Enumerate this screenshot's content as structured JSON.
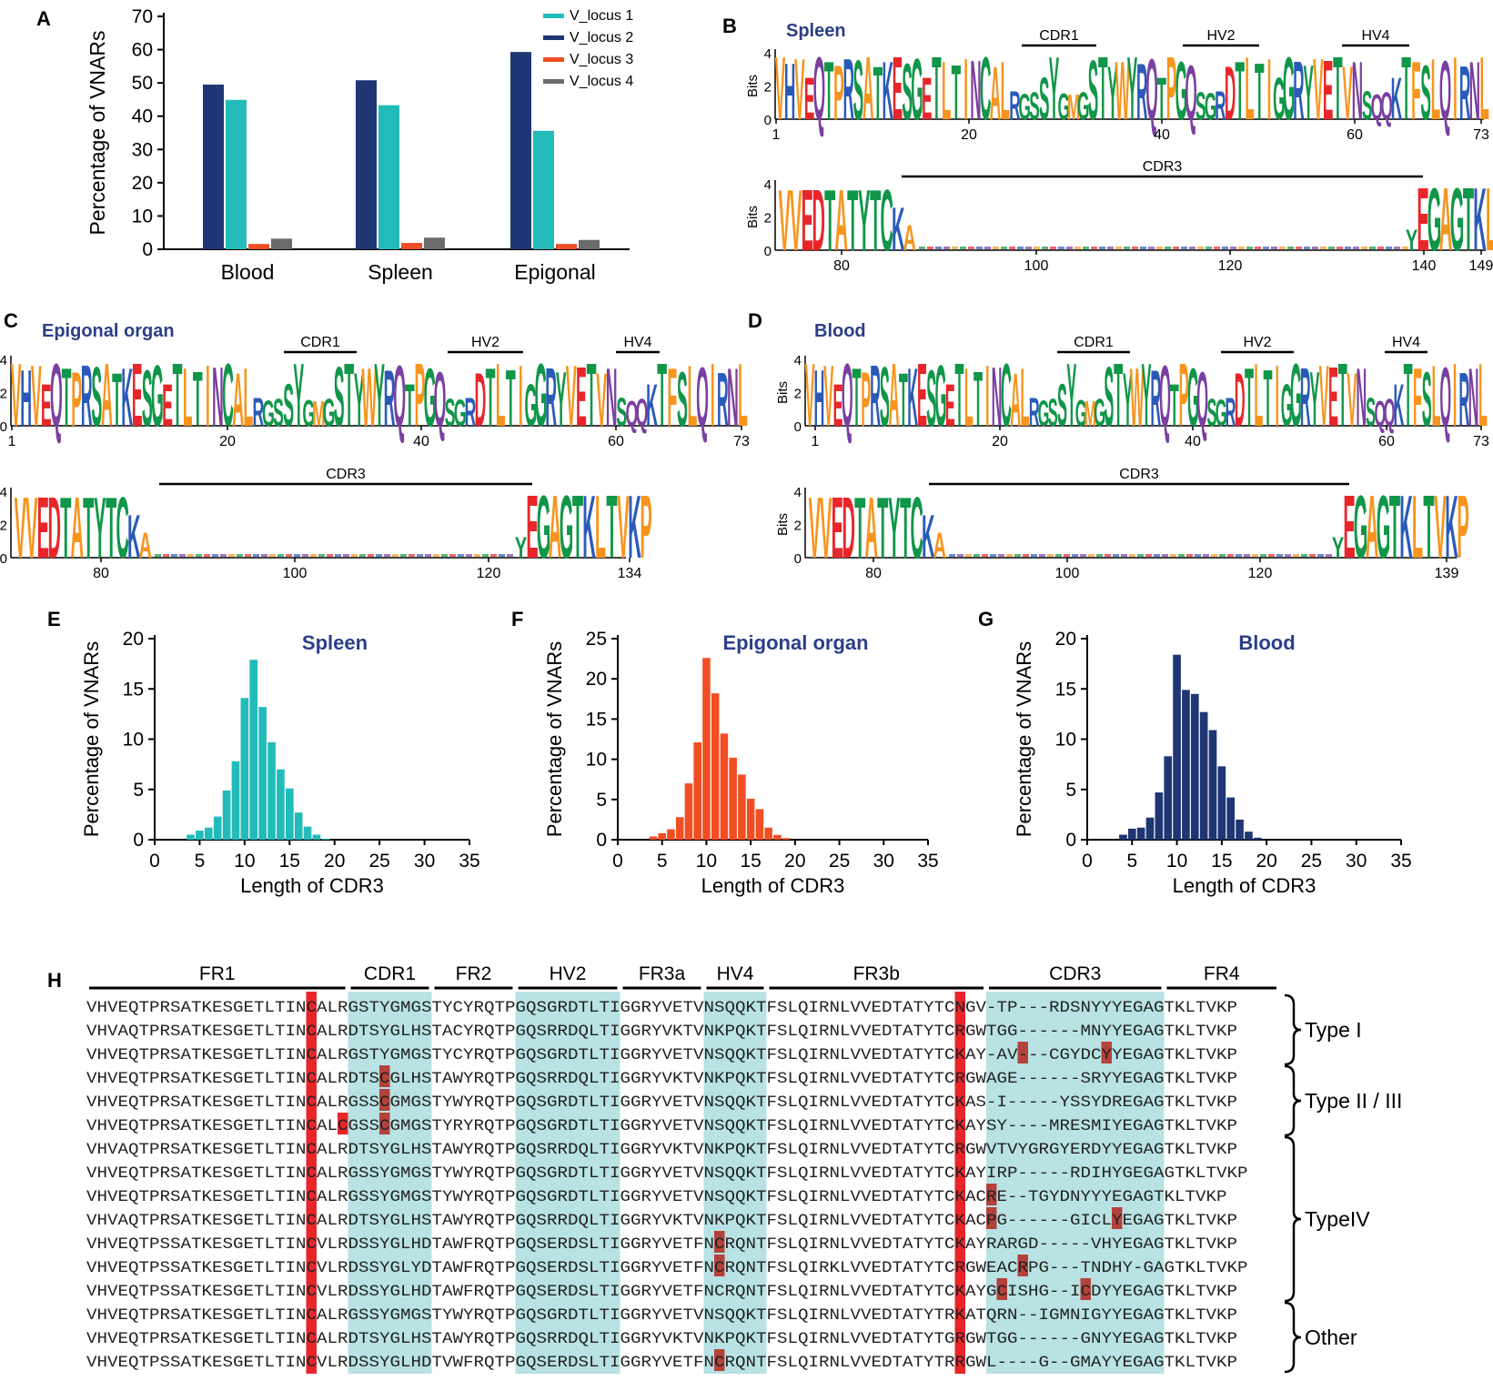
{
  "panel_labels": [
    "A",
    "B",
    "C",
    "D",
    "E",
    "F",
    "G",
    "H"
  ],
  "colors": {
    "v_locus_1": "#23bbba",
    "v_locus_2": "#1f3674",
    "v_locus_3": "#f04e23",
    "v_locus_4": "#6b6b6b",
    "title_blue": "#2b3e86",
    "cys_red": "#e8262a",
    "hv_teal": "#b8e2e3",
    "logo": [
      "#109648",
      "#2a5ab9",
      "#f7941d",
      "#e8262a",
      "#7a3fa0"
    ]
  },
  "chart_data": [
    {
      "id": "A",
      "type": "bar",
      "title": "",
      "categories": [
        "Blood",
        "Spleen",
        "Epigonal"
      ],
      "series": [
        {
          "name": "V_locus 2",
          "values": [
            49.5,
            50.8,
            59.3
          ]
        },
        {
          "name": "V_locus 1",
          "values": [
            44.9,
            43.3,
            35.6
          ]
        },
        {
          "name": "V_locus 3",
          "values": [
            1.6,
            1.9,
            1.6
          ]
        },
        {
          "name": "V_locus 4",
          "values": [
            3.2,
            3.5,
            2.8
          ]
        }
      ],
      "legend": [
        "V_locus 1",
        "V_locus 2",
        "V_locus 3",
        "V_locus 4"
      ],
      "legend_position": "top-right",
      "ylabel": "Percentage of VNARs",
      "xlabel": "",
      "ylim": [
        0,
        70
      ],
      "yticks": [
        0,
        10,
        20,
        30,
        40,
        50,
        60,
        70
      ]
    },
    {
      "id": "E",
      "type": "bar",
      "title": "Spleen",
      "color": "#23bbba",
      "x": [
        1,
        2,
        3,
        4,
        5,
        6,
        7,
        8,
        9,
        10,
        11,
        12,
        13,
        14,
        15,
        16,
        17,
        18,
        19,
        20
      ],
      "values": [
        0,
        0,
        0,
        0.5,
        0.9,
        1.2,
        2.3,
        4.9,
        7.8,
        14.1,
        17.9,
        13.2,
        9.7,
        7.0,
        5.1,
        2.7,
        1.3,
        0.5,
        0.1,
        0
      ],
      "xlabel": "Length of CDR3",
      "ylabel": "Percentage of VNARs",
      "xlim": [
        0,
        35
      ],
      "ylim": [
        0,
        20
      ],
      "xticks": [
        0,
        5,
        10,
        15,
        20,
        25,
        30,
        35
      ],
      "yticks": [
        0,
        5,
        10,
        15,
        20
      ]
    },
    {
      "id": "F",
      "type": "bar",
      "title": "Epigonal organ",
      "color": "#f04e23",
      "x": [
        1,
        2,
        3,
        4,
        5,
        6,
        7,
        8,
        9,
        10,
        11,
        12,
        13,
        14,
        15,
        16,
        17,
        18,
        19,
        20
      ],
      "values": [
        0,
        0,
        0,
        0.4,
        0.8,
        1.3,
        2.8,
        7.0,
        12.1,
        22.6,
        18.2,
        13.2,
        10.2,
        8.1,
        5.1,
        3.8,
        1.5,
        0.6,
        0.2,
        0
      ],
      "xlabel": "Length of CDR3",
      "ylabel": "Percentage of VNARs",
      "xlim": [
        0,
        35
      ],
      "ylim": [
        0,
        25
      ],
      "xticks": [
        0,
        5,
        10,
        15,
        20,
        25,
        30,
        35
      ],
      "yticks": [
        0,
        5,
        10,
        15,
        20,
        25
      ]
    },
    {
      "id": "G",
      "type": "bar",
      "title": "Blood",
      "color": "#1f3674",
      "x": [
        1,
        2,
        3,
        4,
        5,
        6,
        7,
        8,
        9,
        10,
        11,
        12,
        13,
        14,
        15,
        16,
        17,
        18,
        19,
        20
      ],
      "values": [
        0,
        0,
        0,
        0.5,
        1.1,
        1.2,
        2.2,
        4.7,
        8.3,
        18.4,
        14.9,
        14.5,
        12.7,
        10.9,
        7.3,
        4.2,
        2.0,
        0.8,
        0.2,
        0
      ],
      "xlabel": "Length of CDR3",
      "ylabel": "Percentage of VNARs",
      "xlim": [
        0,
        35
      ],
      "ylim": [
        0,
        20
      ],
      "xticks": [
        0,
        5,
        10,
        15,
        20,
        25,
        30,
        35
      ],
      "yticks": [
        0,
        5,
        10,
        15,
        20
      ]
    }
  ],
  "logos": {
    "ylabel": "Bits",
    "yticks": [
      0,
      2,
      4
    ],
    "top_sequence": "VHVEQTPRSATKESGETLTINCALRGSSYGMGSTYWYRQTPGQSGRDTLTIGGRYVETVNSQQKTFSLQIRNL",
    "bottom_lead": "VVEDTATYTCKA",
    "bottom_tail": "YEGAGTKLTVKP",
    "region_labels": [
      "CDR1",
      "HV2",
      "HV4",
      "CDR3"
    ],
    "panels": [
      {
        "id": "B",
        "title": "Spleen",
        "top_ticks": [
          "1",
          "20",
          "40",
          "60",
          "73"
        ],
        "bottom_ticks": [
          "80",
          "100",
          "120",
          "140",
          "149"
        ]
      },
      {
        "id": "C",
        "title": "Epigonal organ",
        "top_ticks": [
          "1",
          "20",
          "40",
          "60",
          "73"
        ],
        "bottom_ticks": [
          "80",
          "100",
          "120",
          "134"
        ]
      },
      {
        "id": "D",
        "title": "Blood",
        "top_ticks": [
          "1",
          "20",
          "40",
          "60",
          "73"
        ],
        "bottom_ticks": [
          "80",
          "100",
          "120",
          "139"
        ]
      }
    ]
  },
  "alignment": {
    "regions": [
      {
        "name": "FR1",
        "from": 0,
        "to": 25,
        "shaded": false
      },
      {
        "name": "CDR1",
        "from": 25,
        "to": 33,
        "shaded": true
      },
      {
        "name": "FR2",
        "from": 33,
        "to": 41,
        "shaded": false
      },
      {
        "name": "HV2",
        "from": 41,
        "to": 51,
        "shaded": true
      },
      {
        "name": "FR3a",
        "from": 51,
        "to": 59,
        "shaded": false
      },
      {
        "name": "HV4",
        "from": 59,
        "to": 65,
        "shaded": true
      },
      {
        "name": "FR3b",
        "from": 65,
        "to": 86,
        "shaded": false
      },
      {
        "name": "CDR3",
        "from": 86,
        "to": 103,
        "shaded": true
      },
      {
        "name": "FR4",
        "from": 103,
        "to": 114,
        "shaded": false
      }
    ],
    "rows": [
      "VHVEQTPRSATKESGETLTINCALRGSTYGMGSTYCYRQTPGQSGRDTLTIGGRYVETVNSQQKTFSLQIRNLVVEDTATYTCNGV-TP---RDSNYYYEGAGTKLTVKP",
      "VHVAQTPRSATKESGETLTINCALRDTSYGLHSTACYRQTPGQSRRDQLTIGGRYVKTVNKPQKTFSLQIRNLVVEDTATYTCRGWTGG------MNYYEGAGTKLTVKP",
      "VHVEQTPRSATKESGETLTINCALRGSTYGMGSTYCYRQTPGQSGRDTLTIGGRYVETVNSQQKTFSLQIRNLVVEDTATYTCKAY-AV---CGYDCYYEGAGTKLTVKP",
      "VHVEQTPRSATKESGETLTINCALRDTSCGLHSTAWYRQTPGQSRRDQLTIGGRYVKTVNKPQKTFSLQIRNLVVEDTATYTCRGWAGE------SRYYEGAGTKLTVKP",
      "VHVEQTPRSATKESGETLTINCALRGSSCGMGSTYWYRQTPGQSGRDTLTIGGRYVETVNSQQKTFSLQIRNLVVEDTATYTCKAS-I-----YSSYDREGAGTKLTVKP",
      "VHVEQTPRSATKESGETLTINCALCGSSCGMGSTYRYRQTPGQSGRDTLTIGGRYVETVNSQQKTFSLQIRNLVVEDTATYTCKAYSY----MRESMIYEGAGTKLTVKP",
      "VHVAQTPRSATKESGETLTINCALRDTSYGLHSTAWYRQTPGQSRRDQLTIGGRYVKTVNKPQKTFSLQIRNLVVEDTATYTCRGWVTVYGRGYERDYYEGAGTKLTVKP",
      "VHVEQTPRSATKESGETLTINCALRGSSYGMGSTYWYRQTPGQSGRDTLTIGGRYVETVNSQQKTFSLQIRNLVVEDTATYTCKAYIRP-----RDIHYGEGAGTKLTVKP",
      "VHVEQTPRSATKESGETLTINCALRGSSYGMGSTYWYRQTPGQSGRDTLTIGGRYVETVNSQQKTFSLQIRNLVVEDTATYTCKACRE--TGYDNYYYEGAGTKLTVKP",
      "VHVAQTPRSATKESGETLTINCALRDTSYGLHSTAWYRQTPGQSRRDQLTIGGRYVKTVNKPQKTFSLQIRNLVVEDTATYTCKACPG------GICLYEGAGTKLTVKP",
      "VHVEQTPSSATKESGETLTINCVLRDSSYGLHDTAWFRQTPGQSERDSLTIGGRYVETFNCRQNTFSLQIRNLVVEDTATYTCKAYRARGD-----VHYEGAGTKLTVKP",
      "VHVEQTPSSATKESGETLTINCVLRDSSYGLYDTAWFRQTPGQSERDSLTIGGRYVETFNCRQNTFSLQIRKLVVEDTATYTCRGWEACRPG---TNDHY-GAGTKLTVKP",
      "VHVEQTPSSATKESGETLTINCVLRDSSYGLHDTAWFRQTPGQSERDSLTIGGRYVETFNCRQNTFSLQIRNLVVEDTATYTCKAYGCISHG--ICDYYEGAGTKLTVKP",
      "VHVEQTPRSATKESGETLTINCALRGSSYGMGSTYWYRQTPGQSGRDTLTIGGRYVETVNSQQKTFSLQIRNLVVEDTATYTRKATQRN--IGMNIGYYEGAGTKLTVKP",
      "VHVEQTPRSATKESGETLTINCALRDTSYGLHSTAWYRQTPGQSRRDQLTIGGRYVKTVNKPQKTFSLQIRNLVVEDTATYTGRGWTGG------GNYYEGAGTKLTVKP",
      "VHVEQTPSSATKESGETLTINCVLRDSSYGLHDTVWFRQTPGQSERDSLTIGGRYVETFNCRQNTFSLQIRNLVVEDTATYTRRGWL----G--GMAYYEGAGTKLTVKP"
    ],
    "highlights": [
      [
        2,
        89
      ],
      [
        2,
        97
      ],
      [
        3,
        28
      ],
      [
        4,
        28
      ],
      [
        5,
        24
      ],
      [
        5,
        28
      ],
      [
        8,
        86
      ],
      [
        9,
        86
      ],
      [
        9,
        98
      ],
      [
        10,
        60
      ],
      [
        11,
        60
      ],
      [
        11,
        89
      ],
      [
        12,
        87
      ],
      [
        12,
        95
      ],
      [
        15,
        60
      ]
    ],
    "groups": [
      {
        "label": "Type I",
        "first": 0,
        "last": 2
      },
      {
        "label": "Type II / III",
        "first": 3,
        "last": 5
      },
      {
        "label": "TypeIV",
        "first": 6,
        "last": 12
      },
      {
        "label": "Other",
        "first": 13,
        "last": 15
      }
    ]
  }
}
